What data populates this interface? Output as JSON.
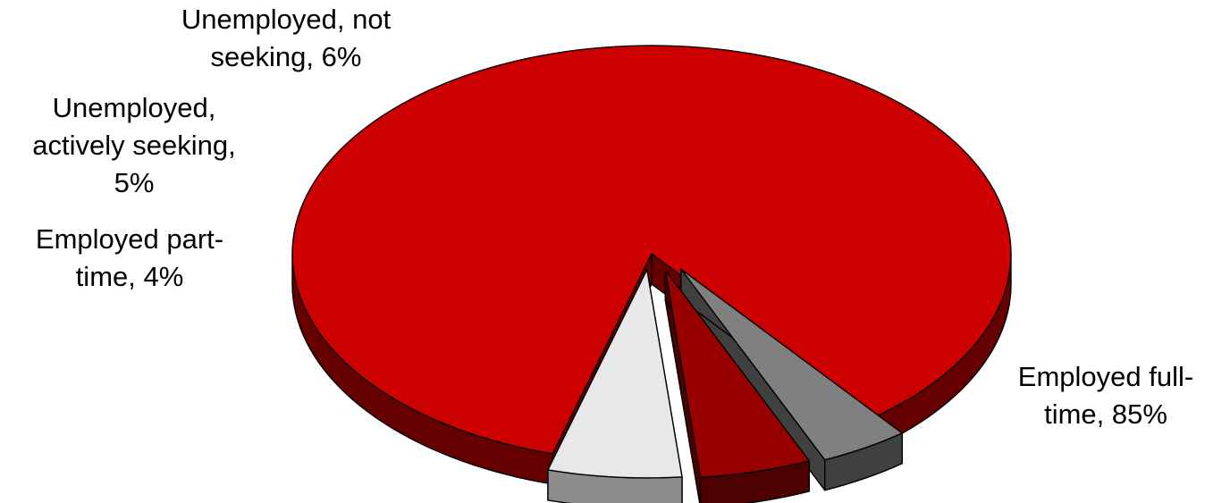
{
  "chart_data": {
    "type": "pie",
    "style": "3d-exploded",
    "slices": [
      {
        "label_lines": [
          "Employed full-",
          "time, 85%"
        ],
        "value": 85,
        "color": "#cc0000",
        "side_color": "#660000"
      },
      {
        "label_lines": [
          "Employed part-",
          "time, 4%"
        ],
        "value": 4,
        "color": "#808080",
        "side_color": "#404040"
      },
      {
        "label_lines": [
          "Unemployed,",
          "actively seeking,",
          "5%"
        ],
        "value": 5,
        "color": "#990000",
        "side_color": "#4d0000"
      },
      {
        "label_lines": [
          "Unemployed, not",
          "seeking, 6%"
        ],
        "value": 6,
        "color": "#e8e8e8",
        "side_color": "#8c8c8c"
      }
    ],
    "legend": "none",
    "data_labels": "category and percent"
  }
}
